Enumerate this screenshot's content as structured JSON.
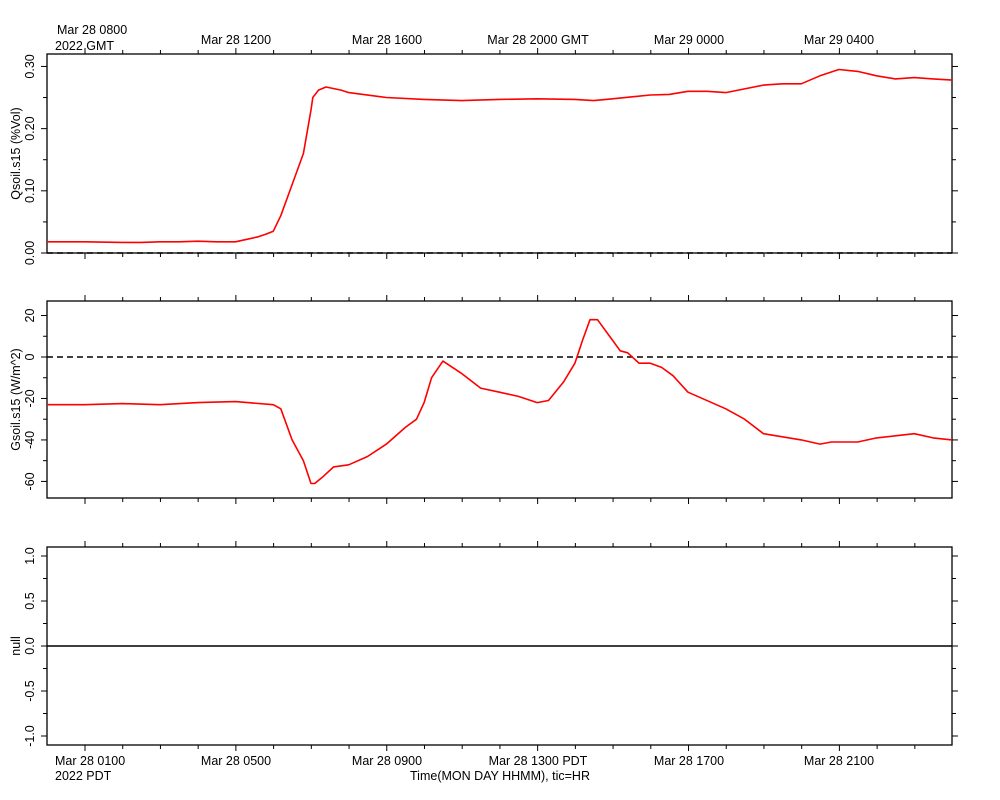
{
  "top_axis": {
    "corner_line1": "Mar 28 0800",
    "corner_line2": "2022 GMT",
    "labels": [
      "Mar 28 1200",
      "Mar 28 1600",
      "Mar 28 2000 GMT",
      "Mar 29 0000",
      "Mar 29 0400"
    ]
  },
  "bottom_axis": {
    "corner_line1": "Mar 28 0100",
    "corner_line2": "2022 PDT",
    "labels": [
      "Mar 28 0500",
      "Mar 28 0900",
      "Mar 28 1300 PDT",
      "Mar 28 1700",
      "Mar 28 2100"
    ],
    "title": "Time(MON DAY HHMM), tic=HR"
  },
  "colors": {
    "series": "#ff0000",
    "axes": "#000000",
    "reference": "#000000"
  },
  "chart_data": [
    {
      "type": "line",
      "ylabel": "Qsoil.s15 (%Vol)",
      "ylim": [
        0.0,
        0.32
      ],
      "yticks": [
        0.0,
        0.1,
        0.2,
        0.3
      ],
      "ytick_labels": [
        "0.00",
        "0.10",
        "0.20",
        "0.30"
      ],
      "xlim_hours_pdt": [
        0,
        24
      ],
      "reference_line": {
        "y": 0.0,
        "style": "dashed"
      },
      "series": [
        {
          "x_hours_pdt": [
            0,
            1,
            2,
            2.5,
            3,
            3.2,
            3.5,
            4,
            4.5,
            5,
            5.3,
            5.6,
            5.8,
            6.0,
            6.2,
            6.5,
            6.8,
            7.0,
            7.05,
            7.2,
            7.4,
            7.8,
            8,
            9,
            10,
            11,
            12,
            13,
            14,
            14.5,
            15,
            16,
            16.5,
            17,
            17.5,
            18,
            19,
            19.5,
            20,
            20.5,
            21,
            21.5,
            22,
            22.5,
            23,
            23.5,
            24
          ],
          "y": [
            0.018,
            0.018,
            0.017,
            0.017,
            0.018,
            0.018,
            0.018,
            0.019,
            0.018,
            0.018,
            0.022,
            0.026,
            0.03,
            0.035,
            0.06,
            0.11,
            0.16,
            0.23,
            0.25,
            0.262,
            0.267,
            0.262,
            0.258,
            0.25,
            0.247,
            0.245,
            0.247,
            0.248,
            0.247,
            0.245,
            0.248,
            0.254,
            0.255,
            0.26,
            0.26,
            0.258,
            0.27,
            0.272,
            0.272,
            0.285,
            0.295,
            0.292,
            0.285,
            0.28,
            0.282,
            0.28,
            0.278
          ]
        }
      ]
    },
    {
      "type": "line",
      "ylabel": "Gsoil.s15 (W/m^2)",
      "ylim": [
        -68,
        27
      ],
      "yticks": [
        -60,
        -40,
        -20,
        0,
        20
      ],
      "ytick_labels": [
        "-60",
        "-40",
        "-20",
        "0",
        "20"
      ],
      "xlim_hours_pdt": [
        0,
        24
      ],
      "reference_line": {
        "y": 0,
        "style": "dashed"
      },
      "series": [
        {
          "x_hours_pdt": [
            0,
            1,
            2,
            3,
            4,
            5,
            6,
            6.2,
            6.5,
            6.8,
            7.0,
            7.1,
            7.3,
            7.6,
            8,
            8.5,
            9,
            9.5,
            9.8,
            10.0,
            10.2,
            10.5,
            11,
            11.5,
            12,
            12.5,
            13,
            13.3,
            13.7,
            14.0,
            14.2,
            14.4,
            14.6,
            15.0,
            15.2,
            15.4,
            15.7,
            16.0,
            16.3,
            16.6,
            17,
            18,
            18.5,
            19,
            20,
            20.5,
            20.8,
            21,
            21.5,
            22,
            22.5,
            23,
            23.5,
            24
          ],
          "y": [
            -23,
            -23,
            -22.5,
            -23,
            -22,
            -21.5,
            -23,
            -25,
            -40,
            -50,
            -61,
            -61,
            -58,
            -53,
            -52,
            -48,
            -42,
            -34,
            -30,
            -22,
            -10,
            -2,
            -8,
            -15,
            -17,
            -19,
            -22,
            -21,
            -12,
            -3,
            8,
            18,
            18,
            8,
            3,
            2,
            -3,
            -3,
            -5,
            -9,
            -17,
            -25,
            -30,
            -37,
            -40,
            -42,
            -41,
            -41,
            -41,
            -39,
            -38,
            -37,
            -39,
            -40
          ]
        }
      ]
    },
    {
      "type": "line",
      "ylabel": "null",
      "ylim": [
        -1.1,
        1.1
      ],
      "yticks": [
        -1.0,
        -0.5,
        0.0,
        0.5,
        1.0
      ],
      "ytick_labels": [
        "-1.0",
        "-0.5",
        "0.0",
        "0.5",
        "1.0"
      ],
      "xlim_hours_pdt": [
        0,
        24
      ],
      "reference_line": {
        "y": 0.0,
        "style": "solid"
      },
      "series": []
    }
  ]
}
